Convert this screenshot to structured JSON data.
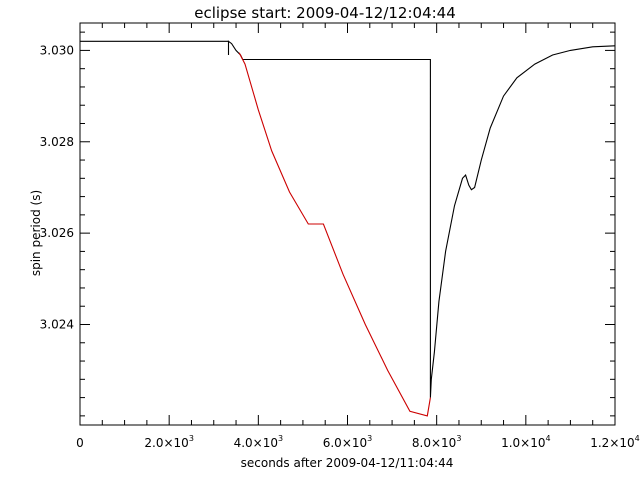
{
  "chart_data": {
    "type": "line",
    "title": "eclipse start: 2009-04-12/12:04:44",
    "xlabel": "seconds after 2009-04-12/11:04:44",
    "ylabel": "spin period (s)",
    "xlim": [
      0,
      12000
    ],
    "ylim": [
      3.0218,
      3.0306
    ],
    "grid": false,
    "x_ticks": [
      {
        "value": 0,
        "label": "0"
      },
      {
        "value": 2000,
        "mantissa": "2.0",
        "exponent": "3"
      },
      {
        "value": 4000,
        "mantissa": "4.0",
        "exponent": "3"
      },
      {
        "value": 6000,
        "mantissa": "6.0",
        "exponent": "3"
      },
      {
        "value": 8000,
        "mantissa": "8.0",
        "exponent": "3"
      },
      {
        "value": 10000,
        "mantissa": "1.0",
        "exponent": "4"
      },
      {
        "value": 12000,
        "mantissa": "1.2",
        "exponent": "4"
      }
    ],
    "x_minor_step": 500,
    "y_ticks": [
      {
        "value": 3.024,
        "label": "3.024"
      },
      {
        "value": 3.026,
        "label": "3.026"
      },
      {
        "value": 3.028,
        "label": "3.028"
      },
      {
        "value": 3.03,
        "label": "3.030"
      }
    ],
    "y_minor_step": 0.0004,
    "series": [
      {
        "color": "#000000",
        "points": [
          [
            0,
            3.0302
          ],
          [
            3330,
            3.0302
          ],
          [
            3330,
            3.0299
          ],
          [
            3330,
            3.0302
          ],
          [
            3400,
            3.03015
          ],
          [
            3500,
            3.03
          ],
          [
            3600,
            3.0299
          ],
          [
            3650,
            3.0298
          ],
          [
            7860,
            3.0298
          ],
          [
            7860,
            3.0224
          ],
          [
            7880,
            3.0228
          ],
          [
            7950,
            3.0234
          ],
          [
            8050,
            3.0245
          ],
          [
            8200,
            3.0256
          ],
          [
            8400,
            3.0266
          ],
          [
            8580,
            3.0272
          ],
          [
            8650,
            3.02727
          ],
          [
            8720,
            3.02705
          ],
          [
            8780,
            3.02695
          ],
          [
            8850,
            3.027
          ],
          [
            9000,
            3.0276
          ],
          [
            9200,
            3.0283
          ],
          [
            9500,
            3.029
          ],
          [
            9800,
            3.0294
          ],
          [
            10200,
            3.0297
          ],
          [
            10600,
            3.0299
          ],
          [
            11000,
            3.03
          ],
          [
            11500,
            3.03008
          ],
          [
            12000,
            3.0301
          ]
        ]
      },
      {
        "color": "#cc0000",
        "points": [
          [
            3570,
            3.02995
          ],
          [
            3700,
            3.0297
          ],
          [
            4000,
            3.0287
          ],
          [
            4300,
            3.0278
          ],
          [
            4700,
            3.0269
          ],
          [
            5120,
            3.0262
          ],
          [
            5460,
            3.0262
          ],
          [
            5900,
            3.0251
          ],
          [
            6400,
            3.024
          ],
          [
            6900,
            3.023
          ],
          [
            7400,
            3.0221
          ],
          [
            7790,
            3.022
          ],
          [
            7860,
            3.0224
          ]
        ]
      }
    ]
  }
}
